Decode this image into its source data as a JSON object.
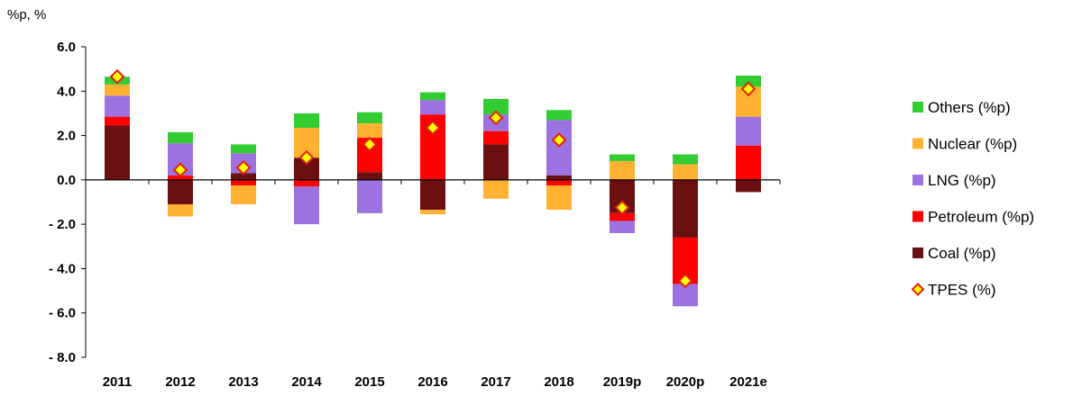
{
  "chart_data": {
    "type": "bar",
    "subtype": "stacked",
    "unit_label": "%p, %",
    "title": "",
    "xlabel": "",
    "ylabel": "",
    "categories": [
      "2011",
      "2012",
      "2013",
      "2014",
      "2015",
      "2016",
      "2017",
      "2018",
      "2019p",
      "2020p",
      "2021e"
    ],
    "ylim": [
      -8.0,
      6.0
    ],
    "yticks": [
      6.0,
      4.0,
      2.0,
      0.0,
      -2.0,
      -4.0,
      -6.0,
      -8.0
    ],
    "ytick_labels": [
      "6.0",
      "4.0",
      "2.0",
      "0.0",
      "- 2.0",
      "- 4.0",
      "- 6.0",
      "- 8.0"
    ],
    "grid": false,
    "legend_position": "right",
    "series": [
      {
        "name": "Coal (%p)",
        "kind": "bar",
        "color": "#6b1010",
        "values": [
          2.45,
          -1.1,
          0.3,
          1.0,
          0.35,
          -1.35,
          1.6,
          0.2,
          -1.5,
          -2.6,
          -0.55
        ]
      },
      {
        "name": "Petroleum (%p)",
        "kind": "bar",
        "color": "#ff0000",
        "values": [
          0.4,
          0.2,
          -0.25,
          -0.3,
          1.55,
          2.95,
          0.6,
          -0.25,
          -0.35,
          -2.1,
          1.55
        ]
      },
      {
        "name": "LNG (%p)",
        "kind": "bar",
        "color": "#9b72df",
        "values": [
          0.95,
          1.45,
          0.9,
          -1.7,
          -1.5,
          0.65,
          0.75,
          2.5,
          -0.55,
          -1.0,
          1.3
        ]
      },
      {
        "name": "Nuclear (%p)",
        "kind": "bar",
        "color": "#ffb231",
        "values": [
          0.5,
          -0.55,
          -0.85,
          1.35,
          0.65,
          -0.2,
          -0.85,
          -1.1,
          0.85,
          0.7,
          1.35
        ]
      },
      {
        "name": "Others (%p)",
        "kind": "bar",
        "color": "#33cc33",
        "values": [
          0.35,
          0.5,
          0.4,
          0.65,
          0.5,
          0.35,
          0.7,
          0.45,
          0.3,
          0.45,
          0.5
        ]
      },
      {
        "name": "TPES (%)",
        "kind": "marker",
        "color": "#ffff00",
        "edge_color": "#e02010",
        "values": [
          4.65,
          0.45,
          0.55,
          1.0,
          1.6,
          2.35,
          2.8,
          1.8,
          -1.25,
          -4.55,
          4.1
        ]
      }
    ],
    "legend_order": [
      "Others (%p)",
      "Nuclear (%p)",
      "LNG (%p)",
      "Petroleum (%p)",
      "Coal (%p)",
      "TPES (%)"
    ]
  }
}
